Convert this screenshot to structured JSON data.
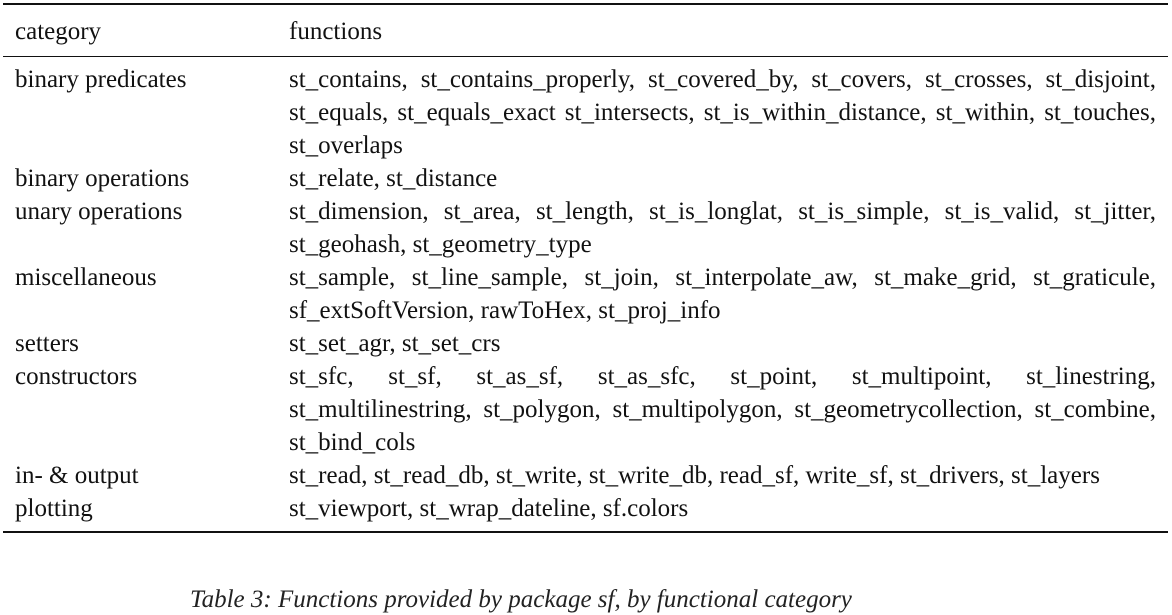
{
  "table": {
    "headers": [
      "category",
      "functions"
    ],
    "rows": [
      {
        "category": "binary predicates",
        "functions": "st_contains, st_contains_properly, st_covered_by, st_covers, st_crosses, st_disjoint, st_equals, st_equals_exact st_intersects, st_is_within_distance, st_within, st_touches, st_overlaps"
      },
      {
        "category": "binary operations",
        "functions": "st_relate, st_distance"
      },
      {
        "category": "unary operations",
        "functions": "st_dimension, st_area, st_length, st_is_longlat, st_is_simple, st_is_valid, st_jitter, st_geohash, st_geometry_type"
      },
      {
        "category": "miscellaneous",
        "functions": "st_sample, st_line_sample, st_join, st_interpolate_aw, st_make_grid, st_graticule, sf_extSoftVersion, rawToHex, st_proj_info"
      },
      {
        "category": "setters",
        "functions": "st_set_agr, st_set_crs"
      },
      {
        "category": "constructors",
        "functions": "st_sfc, st_sf, st_as_sf, st_as_sfc, st_point, st_multipoint, st_linestring, st_multilinestring, st_polygon, st_multipolygon, st_geometrycollection, st_combine, st_bind_cols"
      },
      {
        "category": "in- & output",
        "functions": "st_read, st_read_db, st_write, st_write_db, read_sf, write_sf, st_drivers, st_layers"
      },
      {
        "category": "plotting",
        "functions": "st_viewport, st_wrap_dateline, sf.colors"
      }
    ]
  },
  "caption": "Table 3: Functions provided by package sf, by functional category"
}
